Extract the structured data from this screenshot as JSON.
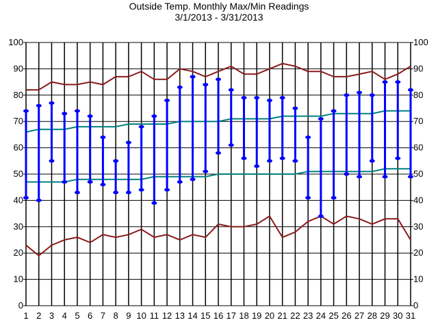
{
  "chart_data": {
    "type": "line",
    "title": "Outside Temp. Monthly Max/Min Readings",
    "subtitle": "3/1/2013 - 3/31/2013",
    "x": [
      1,
      2,
      3,
      4,
      5,
      6,
      7,
      8,
      9,
      10,
      11,
      12,
      13,
      14,
      15,
      16,
      17,
      18,
      19,
      20,
      21,
      22,
      23,
      24,
      25,
      26,
      27,
      28,
      29,
      30,
      31
    ],
    "ylim": [
      0,
      100
    ],
    "yticks": [
      0,
      10,
      20,
      30,
      40,
      50,
      60,
      70,
      80,
      90,
      100
    ],
    "grid": true,
    "series": [
      {
        "role": "record-high",
        "color": "#8b1a1a",
        "values": [
          82,
          82,
          85,
          84,
          84,
          85,
          84,
          87,
          87,
          89,
          86,
          86,
          90,
          89,
          87,
          89,
          91,
          88,
          88,
          90,
          92,
          91,
          89,
          89,
          87,
          87,
          88,
          89,
          86,
          88,
          91
        ]
      },
      {
        "role": "record-low",
        "color": "#8b1a1a",
        "values": [
          23,
          19,
          23,
          25,
          26,
          24,
          27,
          26,
          27,
          29,
          26,
          27,
          25,
          27,
          26,
          31,
          30,
          30,
          31,
          34,
          26,
          28,
          32,
          34,
          31,
          34,
          33,
          31,
          33,
          33,
          25
        ]
      },
      {
        "role": "normal-high",
        "color": "#008080",
        "values": [
          66,
          67,
          67,
          67,
          68,
          68,
          68,
          68,
          69,
          69,
          69,
          69,
          70,
          70,
          70,
          70,
          71,
          71,
          71,
          71,
          72,
          72,
          72,
          72,
          73,
          73,
          73,
          73,
          74,
          74,
          74
        ]
      },
      {
        "role": "normal-low",
        "color": "#008080",
        "values": [
          47,
          47,
          47,
          47,
          48,
          48,
          48,
          48,
          48,
          48,
          49,
          49,
          49,
          49,
          49,
          50,
          50,
          50,
          50,
          50,
          50,
          50,
          51,
          51,
          51,
          51,
          51,
          51,
          52,
          52,
          52
        ]
      }
    ],
    "daily_range": {
      "color": "#0000ff",
      "max": [
        74,
        76,
        77,
        73,
        74,
        72,
        64,
        55,
        62,
        68,
        72,
        78,
        83,
        87,
        84,
        86,
        82,
        79,
        79,
        78,
        79,
        75,
        64,
        71,
        74,
        80,
        81,
        80,
        85,
        85,
        82
      ],
      "min": [
        41,
        40,
        55,
        47,
        43,
        47,
        46,
        43,
        43,
        44,
        39,
        44,
        47,
        48,
        51,
        58,
        61,
        56,
        53,
        55,
        56,
        55,
        41,
        34,
        41,
        50,
        49,
        55,
        49,
        56,
        49
      ]
    }
  }
}
